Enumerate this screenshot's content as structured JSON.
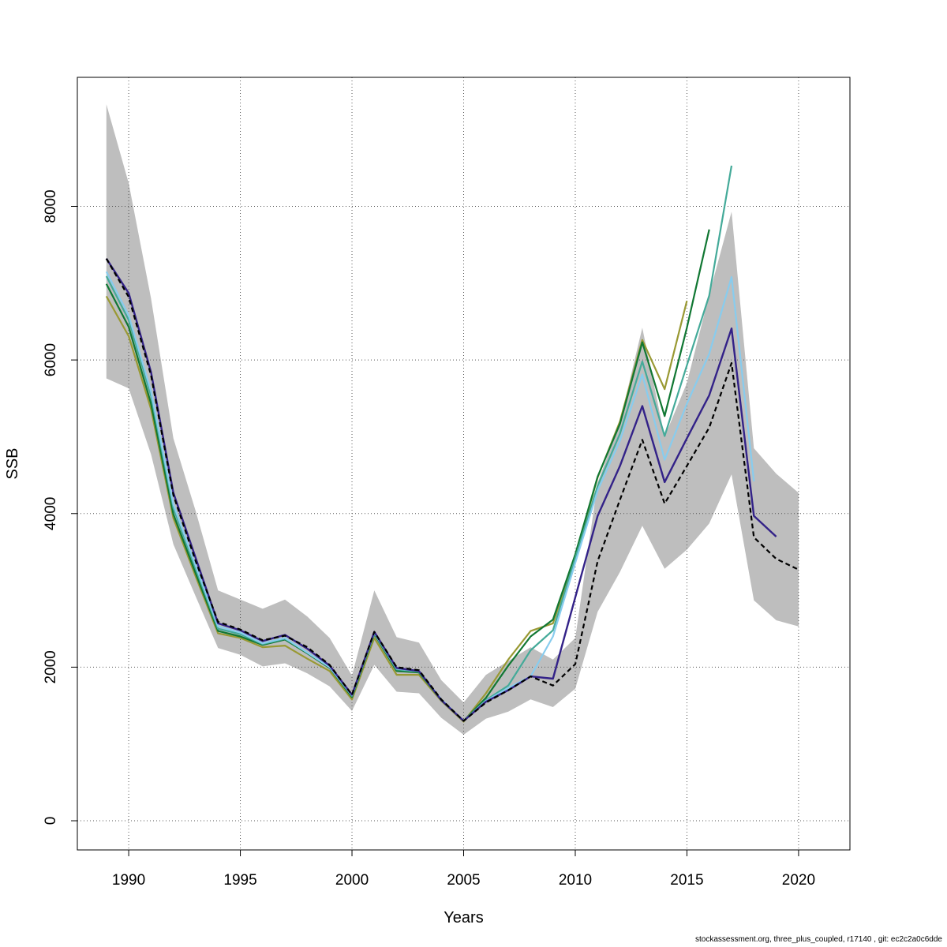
{
  "footer": "stockassessment.org, three_plus_coupled, r17140 , git: ec2c2a0c6dde",
  "chart_data": {
    "type": "line",
    "title": "",
    "xlabel": "Years",
    "ylabel": "SSB",
    "xlim": [
      1987.7,
      2022.3
    ],
    "ylim": [
      -380,
      9680
    ],
    "xticks": [
      1990,
      1995,
      2000,
      2005,
      2010,
      2015,
      2020
    ],
    "yticks": [
      0,
      2000,
      4000,
      6000,
      8000
    ],
    "grid": true,
    "legend": "none",
    "band": {
      "color": "#bebebe",
      "x": [
        1989,
        1990,
        1991,
        1992,
        1993,
        1994,
        1995,
        1996,
        1997,
        1998,
        1999,
        2000,
        2001,
        2002,
        2003,
        2004,
        2005,
        2006,
        2007,
        2008,
        2009,
        2010,
        2011,
        2012,
        2013,
        2014,
        2015,
        2016,
        2017,
        2018,
        2019,
        2020
      ],
      "upper": [
        9330,
        8300,
        6800,
        4980,
        4030,
        3000,
        2880,
        2760,
        2880,
        2660,
        2380,
        1890,
        3000,
        2390,
        2320,
        1830,
        1540,
        1900,
        2080,
        2260,
        2100,
        2380,
        4400,
        5200,
        6420,
        5000,
        5700,
        6850,
        7930,
        4850,
        4520,
        4270
      ],
      "lower": [
        5760,
        5630,
        4770,
        3600,
        2920,
        2250,
        2160,
        2010,
        2050,
        1920,
        1750,
        1430,
        2030,
        1680,
        1660,
        1340,
        1120,
        1330,
        1420,
        1580,
        1480,
        1720,
        2720,
        3240,
        3840,
        3280,
        3530,
        3870,
        4510,
        2870,
        2610,
        2530
      ]
    },
    "series": [
      {
        "color": "#999933",
        "width": 2.2,
        "dash": "",
        "x": [
          1989,
          1990,
          1991,
          1992,
          1993,
          1994,
          1995,
          1996,
          1997,
          1998,
          1999,
          2000,
          2001,
          2002,
          2003,
          2004,
          2005,
          2006,
          2007,
          2008,
          2009,
          2010,
          2011,
          2012,
          2013,
          2014,
          2015
        ],
        "values": [
          6830,
          6310,
          5360,
          3940,
          3180,
          2440,
          2380,
          2260,
          2280,
          2110,
          1950,
          1580,
          2380,
          1900,
          1900,
          1560,
          1290,
          1660,
          2100,
          2470,
          2570,
          3440,
          4470,
          5200,
          6260,
          5620,
          6770
        ]
      },
      {
        "color": "#117733",
        "width": 2.2,
        "dash": "",
        "x": [
          1989,
          1990,
          1991,
          1992,
          1993,
          1994,
          1995,
          1996,
          1997,
          1998,
          1999,
          2000,
          2001,
          2002,
          2003,
          2004,
          2005,
          2006,
          2007,
          2008,
          2009,
          2010,
          2011,
          2012,
          2013,
          2014,
          2015,
          2016
        ],
        "values": [
          6990,
          6430,
          5430,
          3990,
          3220,
          2470,
          2400,
          2290,
          2360,
          2180,
          1990,
          1610,
          2430,
          1950,
          1930,
          1570,
          1300,
          1600,
          2020,
          2400,
          2620,
          3470,
          4480,
          5170,
          6230,
          5270,
          6420,
          7700
        ]
      },
      {
        "color": "#44AA99",
        "width": 2.2,
        "dash": "",
        "x": [
          1989,
          1990,
          1991,
          1992,
          1993,
          1994,
          1995,
          1996,
          1997,
          1998,
          1999,
          2000,
          2001,
          2002,
          2003,
          2004,
          2005,
          2006,
          2007,
          2008,
          2009,
          2010,
          2011,
          2012,
          2013,
          2014,
          2015,
          2016,
          2017
        ],
        "values": [
          7090,
          6520,
          5530,
          4070,
          3280,
          2500,
          2430,
          2300,
          2370,
          2190,
          2000,
          1630,
          2440,
          1970,
          1940,
          1570,
          1300,
          1570,
          1760,
          2220,
          2480,
          3420,
          4360,
          5040,
          5980,
          5010,
          5930,
          6840,
          8530
        ]
      },
      {
        "color": "#88CCEE",
        "width": 2.2,
        "dash": "",
        "x": [
          1989,
          1990,
          1991,
          1992,
          1993,
          1994,
          1995,
          1996,
          1997,
          1998,
          1999,
          2000,
          2001,
          2002,
          2003,
          2004,
          2005,
          2006,
          2007,
          2008,
          2009,
          2010,
          2011,
          2012,
          2013,
          2014,
          2015,
          2016,
          2017,
          2018
        ],
        "values": [
          7150,
          6580,
          5590,
          4120,
          3320,
          2530,
          2450,
          2310,
          2380,
          2190,
          2000,
          1630,
          2450,
          1980,
          1950,
          1580,
          1300,
          1560,
          1730,
          1880,
          2400,
          3360,
          4300,
          4950,
          5810,
          4700,
          5430,
          6080,
          7080,
          4420
        ]
      },
      {
        "color": "#332288",
        "width": 2.4,
        "dash": "",
        "x": [
          1989,
          1990,
          1991,
          1992,
          1993,
          1994,
          1995,
          1996,
          1997,
          1998,
          1999,
          2000,
          2001,
          2002,
          2003,
          2004,
          2005,
          2006,
          2007,
          2008,
          2009,
          2010,
          2011,
          2012,
          2013,
          2014,
          2015,
          2016,
          2017,
          2018,
          2019
        ],
        "values": [
          7320,
          6870,
          5840,
          4270,
          3420,
          2570,
          2480,
          2340,
          2420,
          2240,
          2020,
          1640,
          2460,
          1990,
          1950,
          1570,
          1300,
          1550,
          1700,
          1880,
          1850,
          2910,
          3970,
          4620,
          5400,
          4410,
          4980,
          5540,
          6410,
          3970,
          3700
        ]
      },
      {
        "color": "#000000",
        "width": 2.2,
        "dash": "6,4",
        "x": [
          1989,
          1990,
          1991,
          1992,
          1993,
          1994,
          1995,
          1996,
          1997,
          1998,
          1999,
          2000,
          2001,
          2002,
          2003,
          2004,
          2005,
          2006,
          2007,
          2008,
          2009,
          2010,
          2011,
          2012,
          2013,
          2014,
          2015,
          2016,
          2017,
          2018,
          2019,
          2020
        ],
        "values": [
          7320,
          6820,
          5800,
          4240,
          3380,
          2590,
          2490,
          2350,
          2410,
          2260,
          2030,
          1640,
          2460,
          2000,
          1960,
          1580,
          1300,
          1540,
          1700,
          1880,
          1760,
          2040,
          3380,
          4180,
          4960,
          4130,
          4620,
          5120,
          5960,
          3690,
          3410,
          3270
        ]
      }
    ]
  }
}
